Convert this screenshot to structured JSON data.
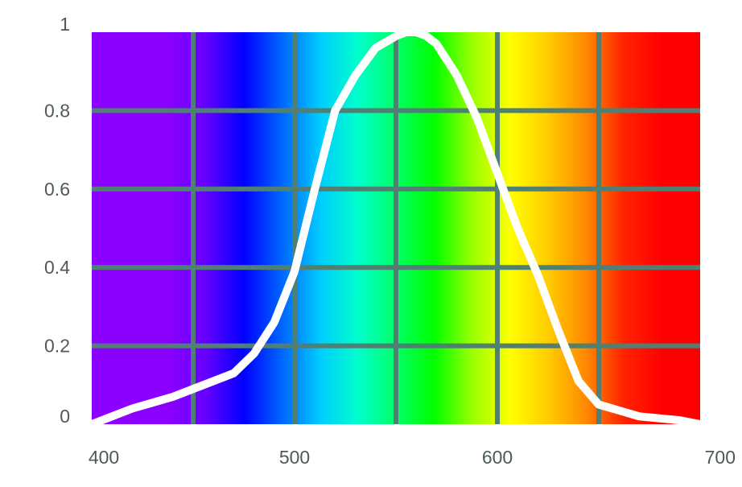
{
  "chart_data": {
    "type": "line",
    "title": "",
    "xlabel": "",
    "ylabel": "",
    "xlim": [
      400,
      700
    ],
    "ylim": [
      0,
      1
    ],
    "grid": true,
    "legend": "none",
    "x_ticks": [
      {
        "value": 400,
        "label": "400"
      },
      {
        "value": 500,
        "label": "500"
      },
      {
        "value": 600,
        "label": "600"
      },
      {
        "value": 700,
        "label": "700"
      }
    ],
    "y_ticks": [
      {
        "value": 0,
        "label": "0"
      },
      {
        "value": 0.2,
        "label": "0.2"
      },
      {
        "value": 0.4,
        "label": "0.4"
      },
      {
        "value": 0.6,
        "label": "0.6"
      },
      {
        "value": 0.8,
        "label": "0.8"
      },
      {
        "value": 1,
        "label": "1"
      }
    ],
    "grid_x": [
      450,
      500,
      550,
      600,
      650
    ],
    "grid_y": [
      0.2,
      0.4,
      0.6,
      0.8
    ],
    "series": [
      {
        "color": "#ffffff",
        "x": [
          400,
          420,
          440,
          460,
          470,
          480,
          490,
          500,
          510,
          520,
          530,
          540,
          550,
          555,
          560,
          565,
          570,
          580,
          590,
          600,
          610,
          620,
          630,
          640,
          650,
          670,
          690,
          700
        ],
        "y": [
          0.0,
          0.04,
          0.07,
          0.11,
          0.13,
          0.18,
          0.26,
          0.39,
          0.6,
          0.8,
          0.89,
          0.96,
          0.99,
          1.0,
          1.0,
          0.99,
          0.97,
          0.89,
          0.78,
          0.64,
          0.5,
          0.38,
          0.24,
          0.11,
          0.05,
          0.02,
          0.01,
          0.0
        ]
      }
    ],
    "colors": {
      "grid": "#4f8073",
      "spectrum": [
        "#8b00ff",
        "#8b00ff",
        "#8b00ff",
        "#6600ff",
        "#0000ff",
        "#0066ff",
        "#00ccff",
        "#00ffcc",
        "#00ff66",
        "#00ff00",
        "#99ff00",
        "#ffff00",
        "#ffcc00",
        "#ff8800",
        "#ff2200",
        "#ff0000",
        "#ff0000"
      ]
    }
  }
}
